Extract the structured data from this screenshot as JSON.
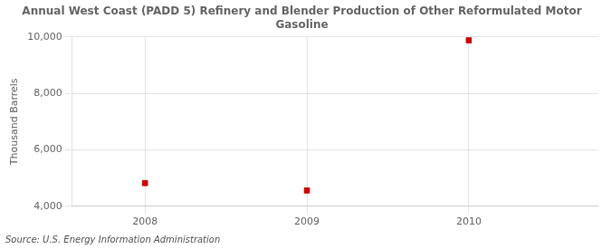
{
  "chart_data": {
    "type": "scatter",
    "title": "Annual West Coast (PADD 5) Refinery and Blender Production of Other Reformulated Motor\nGasoline",
    "ylabel": "Thousand Barrels",
    "source": "Source: U.S. Energy Information Administration",
    "x": [
      2008,
      2009,
      2010
    ],
    "values": [
      4820,
      4560,
      9880
    ],
    "color": "#cc0000",
    "marker": "square",
    "xlim": [
      2007.55,
      2010.8
    ],
    "xticks": [
      2008,
      2009,
      2010
    ],
    "ylim": [
      4000,
      10000
    ],
    "yticks": [
      {
        "value": 4000,
        "label": "4,000"
      },
      {
        "value": 6000,
        "label": "6,000"
      },
      {
        "value": 8000,
        "label": "8,000"
      },
      {
        "value": 10000,
        "label": "10,000"
      }
    ],
    "grid": true
  }
}
